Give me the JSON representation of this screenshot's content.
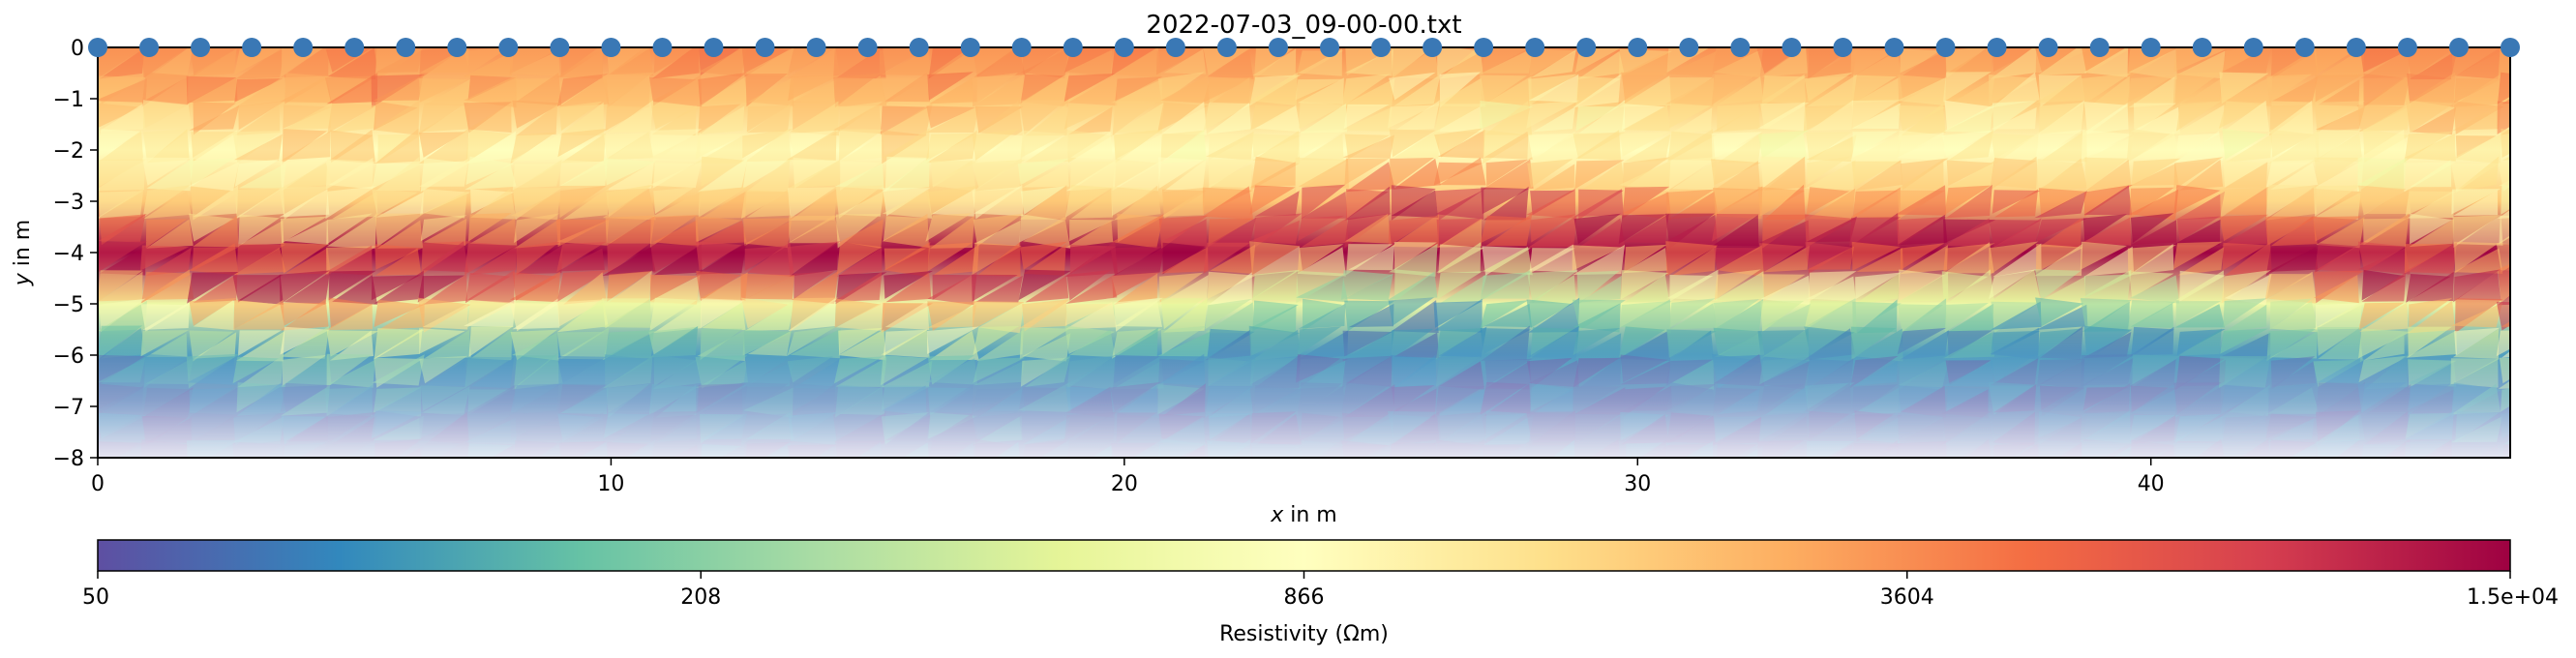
{
  "chart_data": [
    {
      "type": "heatmap",
      "title": "2022-07-03_09-00-00.txt",
      "xlabel": "x in m",
      "ylabel": "y in m",
      "xlim": [
        0,
        47
      ],
      "ylim": [
        -8,
        0
      ],
      "xticks": [
        0,
        10,
        20,
        30,
        40
      ],
      "yticks": [
        0,
        -1,
        -2,
        -3,
        -4,
        -5,
        -6,
        -7,
        -8
      ],
      "electrodes_x": [
        0,
        1,
        2,
        3,
        4,
        5,
        6,
        7,
        8,
        9,
        10,
        11,
        12,
        13,
        14,
        15,
        16,
        17,
        18,
        19,
        20,
        21,
        22,
        23,
        24,
        25,
        26,
        27,
        28,
        29,
        30,
        31,
        32,
        33,
        34,
        35,
        36,
        37,
        38,
        39,
        40,
        41,
        42,
        43,
        44,
        45,
        46,
        47
      ],
      "electrode_y": 0,
      "colormap": "Spectral_r",
      "log_scale": true,
      "grid": false,
      "resistivity_depth_profile": [
        {
          "depth": 0.0,
          "value": 3604
        },
        {
          "depth": -1.0,
          "value": 2000
        },
        {
          "depth": -2.0,
          "value": 866
        },
        {
          "depth": -3.0,
          "value": 2000
        },
        {
          "depth": -4.0,
          "value": 15000
        },
        {
          "depth": -5.0,
          "value": 600
        },
        {
          "depth": -6.0,
          "value": 100
        },
        {
          "depth": -7.0,
          "value": 70
        },
        {
          "depth": -8.0,
          "value": 60
        }
      ]
    },
    {
      "type": "colorbar",
      "label": "Resistivity (Ωm)",
      "ticks": [
        "50",
        "208",
        "866",
        "3604",
        "1.5e+04"
      ],
      "range": [
        50,
        15000
      ],
      "log_scale": true,
      "stops": [
        "#5e4fa2",
        "#3288bd",
        "#66c2a5",
        "#abdda4",
        "#e6f598",
        "#ffffbf",
        "#fee08b",
        "#fdae61",
        "#f46d43",
        "#d53e4f",
        "#9e0142"
      ]
    }
  ],
  "colors": {
    "electrode": "#3a78b5",
    "axes": "#000000"
  }
}
